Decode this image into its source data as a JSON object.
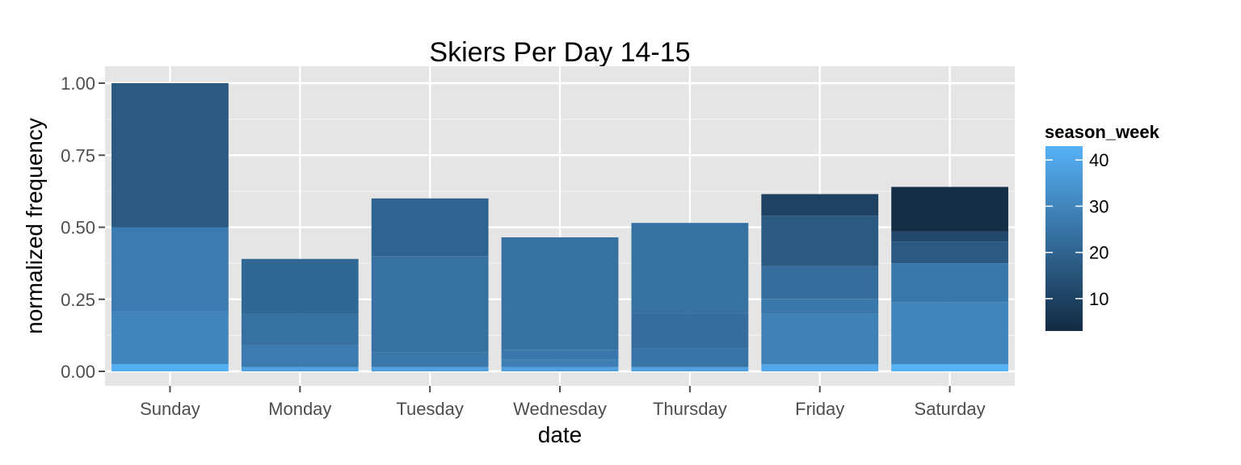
{
  "chart_data": {
    "type": "bar",
    "title": "Skiers Per Day 14-15",
    "xlabel": "date",
    "ylabel": "normalized frequency",
    "ylim": [
      0,
      1.0
    ],
    "y_ticks": [
      "0.00",
      "0.25",
      "0.50",
      "0.75",
      "1.00"
    ],
    "y_tick_values": [
      0,
      0.25,
      0.5,
      0.75,
      1.0
    ],
    "categories": [
      "Sunday",
      "Monday",
      "Tuesday",
      "Wednesday",
      "Thursday",
      "Friday",
      "Saturday"
    ],
    "stacked": true,
    "grid": true,
    "legend": {
      "title": "season_week",
      "position": "right",
      "type": "colorbar",
      "range": [
        3,
        43
      ],
      "ticks": [
        10,
        20,
        30,
        40
      ],
      "tick_labels": [
        "10",
        "20",
        "30",
        "40"
      ],
      "color_low": "#132b43",
      "color_high": "#56b1f7"
    },
    "bars": [
      {
        "category": "Sunday",
        "total": 1.0,
        "segments": [
          {
            "season_week": 42,
            "value": 0.025
          },
          {
            "season_week": 30,
            "value": 0.185
          },
          {
            "season_week": 27,
            "value": 0.29
          },
          {
            "season_week": 17,
            "value": 0.5
          }
        ]
      },
      {
        "category": "Monday",
        "total": 0.39,
        "segments": [
          {
            "season_week": 38,
            "value": 0.015
          },
          {
            "season_week": 27,
            "value": 0.075
          },
          {
            "season_week": 24,
            "value": 0.11
          },
          {
            "season_week": 21,
            "value": 0.19
          }
        ]
      },
      {
        "category": "Tuesday",
        "total": 0.6,
        "segments": [
          {
            "season_week": 38,
            "value": 0.015
          },
          {
            "season_week": 26,
            "value": 0.05
          },
          {
            "season_week": 24,
            "value": 0.335
          },
          {
            "season_week": 20,
            "value": 0.2
          }
        ]
      },
      {
        "category": "Wednesday",
        "total": 0.465,
        "segments": [
          {
            "season_week": 38,
            "value": 0.015
          },
          {
            "season_week": 28,
            "value": 0.025
          },
          {
            "season_week": 26,
            "value": 0.035
          },
          {
            "season_week": 24,
            "value": 0.39
          }
        ]
      },
      {
        "category": "Thursday",
        "total": 0.515,
        "segments": [
          {
            "season_week": 38,
            "value": 0.015
          },
          {
            "season_week": 25,
            "value": 0.065
          },
          {
            "season_week": 23,
            "value": 0.12
          },
          {
            "season_week": 24,
            "value": 0.315
          }
        ]
      },
      {
        "category": "Friday",
        "total": 0.615,
        "segments": [
          {
            "season_week": 40,
            "value": 0.025
          },
          {
            "season_week": 29,
            "value": 0.175
          },
          {
            "season_week": 26,
            "value": 0.05
          },
          {
            "season_week": 23,
            "value": 0.115
          },
          {
            "season_week": 17,
            "value": 0.175
          },
          {
            "season_week": 10,
            "value": 0.075
          }
        ]
      },
      {
        "category": "Saturday",
        "total": 0.64,
        "segments": [
          {
            "season_week": 43,
            "value": 0.025
          },
          {
            "season_week": 30,
            "value": 0.215
          },
          {
            "season_week": 26,
            "value": 0.135
          },
          {
            "season_week": 17,
            "value": 0.075
          },
          {
            "season_week": 12,
            "value": 0.035
          },
          {
            "season_week": 4,
            "value": 0.155
          }
        ]
      }
    ]
  }
}
